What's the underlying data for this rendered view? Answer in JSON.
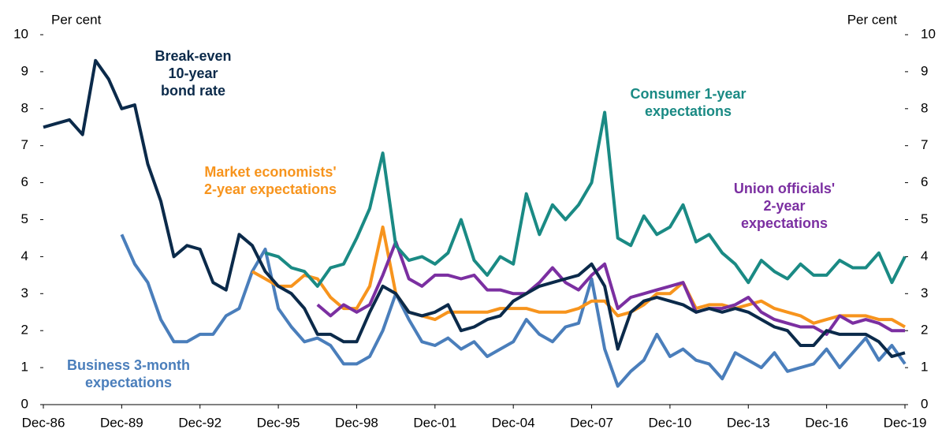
{
  "chart_data": {
    "type": "line",
    "y_label": "Per cent",
    "y2_label": "Per cent",
    "xlim": [
      1986.92,
      2019.92
    ],
    "xticks": [
      {
        "value": 1986.92,
        "label": "Dec-86"
      },
      {
        "value": 1989.92,
        "label": "Dec-89"
      },
      {
        "value": 1992.92,
        "label": "Dec-92"
      },
      {
        "value": 1995.92,
        "label": "Dec-95"
      },
      {
        "value": 1998.92,
        "label": "Dec-98"
      },
      {
        "value": 2001.92,
        "label": "Dec-01"
      },
      {
        "value": 2004.92,
        "label": "Dec-04"
      },
      {
        "value": 2007.92,
        "label": "Dec-07"
      },
      {
        "value": 2010.92,
        "label": "Dec-10"
      },
      {
        "value": 2013.92,
        "label": "Dec-13"
      },
      {
        "value": 2016.92,
        "label": "Dec-16"
      },
      {
        "value": 2019.92,
        "label": "Dec-19"
      }
    ],
    "ylim": [
      0,
      10
    ],
    "yticks": [
      0,
      1,
      2,
      3,
      4,
      5,
      6,
      7,
      8,
      9,
      10
    ],
    "y2lim": [
      0,
      10
    ],
    "y2ticks": [
      0,
      1,
      2,
      3,
      4,
      5,
      6,
      7,
      8,
      9,
      10
    ],
    "grid": false,
    "x": [
      1986.92,
      1987.42,
      1987.92,
      1988.42,
      1988.92,
      1989.42,
      1989.92,
      1990.42,
      1990.92,
      1991.42,
      1991.92,
      1992.42,
      1992.92,
      1993.42,
      1993.92,
      1994.42,
      1994.92,
      1995.42,
      1995.92,
      1996.42,
      1996.92,
      1997.42,
      1997.92,
      1998.42,
      1998.92,
      1999.42,
      1999.92,
      2000.42,
      2000.92,
      2001.42,
      2001.92,
      2002.42,
      2002.92,
      2003.42,
      2003.92,
      2004.42,
      2004.92,
      2005.42,
      2005.92,
      2006.42,
      2006.92,
      2007.42,
      2007.92,
      2008.42,
      2008.92,
      2009.42,
      2009.92,
      2010.42,
      2010.92,
      2011.42,
      2011.92,
      2012.42,
      2012.92,
      2013.42,
      2013.92,
      2014.42,
      2014.92,
      2015.42,
      2015.92,
      2016.42,
      2016.92,
      2017.42,
      2017.92,
      2018.42,
      2018.92,
      2019.42,
      2019.92
    ],
    "series": [
      {
        "name": "Business 3-month\nexpectations",
        "color": "#4a7ebb",
        "values": [
          null,
          null,
          null,
          null,
          null,
          null,
          4.6,
          3.8,
          3.3,
          2.3,
          1.7,
          1.7,
          1.9,
          1.9,
          2.4,
          2.6,
          3.6,
          4.2,
          2.6,
          2.1,
          1.7,
          1.8,
          1.6,
          1.1,
          1.1,
          1.3,
          2.0,
          3.0,
          2.3,
          1.7,
          1.6,
          1.8,
          1.5,
          1.7,
          1.3,
          1.5,
          1.7,
          2.3,
          1.9,
          1.7,
          2.1,
          2.2,
          3.4,
          1.5,
          0.5,
          0.9,
          1.2,
          1.9,
          1.3,
          1.5,
          1.2,
          1.1,
          0.7,
          1.4,
          1.2,
          1.0,
          1.4,
          0.9,
          1.0,
          1.1,
          1.5,
          1.0,
          1.4,
          1.8,
          1.2,
          1.6,
          1.1
        ]
      },
      {
        "name": "Market economists'\n2-year expectations",
        "color": "#f7941d",
        "values": [
          null,
          null,
          null,
          null,
          null,
          null,
          null,
          null,
          null,
          null,
          null,
          null,
          null,
          null,
          null,
          null,
          3.6,
          3.4,
          3.2,
          3.2,
          3.5,
          3.4,
          2.9,
          2.6,
          2.6,
          3.2,
          4.8,
          3.0,
          2.5,
          2.4,
          2.3,
          2.5,
          2.5,
          2.5,
          2.5,
          2.6,
          2.6,
          2.6,
          2.5,
          2.5,
          2.5,
          2.6,
          2.8,
          2.8,
          2.4,
          2.5,
          2.7,
          3.0,
          3.0,
          3.3,
          2.6,
          2.7,
          2.7,
          2.6,
          2.7,
          2.8,
          2.6,
          2.5,
          2.4,
          2.2,
          2.3,
          2.4,
          2.4,
          2.4,
          2.3,
          2.3,
          2.1
        ]
      },
      {
        "name": "Union officials'\n2-year\nexpectations",
        "color": "#7b2fa1",
        "values": [
          null,
          null,
          null,
          null,
          null,
          null,
          null,
          null,
          null,
          null,
          null,
          null,
          null,
          null,
          null,
          null,
          null,
          null,
          null,
          null,
          null,
          2.7,
          2.4,
          2.7,
          2.5,
          2.7,
          3.5,
          4.4,
          3.4,
          3.2,
          3.5,
          3.5,
          3.4,
          3.5,
          3.1,
          3.1,
          3.0,
          3.0,
          3.3,
          3.7,
          3.3,
          3.1,
          3.5,
          3.8,
          2.6,
          2.9,
          3.0,
          3.1,
          3.2,
          3.3,
          2.5,
          2.6,
          2.6,
          2.7,
          2.9,
          2.5,
          2.3,
          2.2,
          2.1,
          2.1,
          1.9,
          2.4,
          2.2,
          2.3,
          2.2,
          2.0,
          2.0
        ]
      },
      {
        "name": "Consumer 1-year\nexpectations",
        "color": "#1a8a84",
        "values": [
          null,
          null,
          null,
          null,
          null,
          null,
          null,
          null,
          null,
          null,
          null,
          null,
          null,
          null,
          null,
          null,
          null,
          4.1,
          4.0,
          3.7,
          3.6,
          3.2,
          3.7,
          3.8,
          4.5,
          5.3,
          6.8,
          4.3,
          3.9,
          4.0,
          3.8,
          4.1,
          5.0,
          3.9,
          3.5,
          4.0,
          3.8,
          5.7,
          4.6,
          5.4,
          5.0,
          5.4,
          6.0,
          7.9,
          4.5,
          4.3,
          5.1,
          4.6,
          4.8,
          5.4,
          4.4,
          4.6,
          4.1,
          3.8,
          3.3,
          3.9,
          3.6,
          3.4,
          3.8,
          3.5,
          3.5,
          3.9,
          3.7,
          3.7,
          4.1,
          3.3,
          4.0
        ]
      },
      {
        "name": "Break-even\n10-year\nbond rate",
        "color": "#0b2a4a",
        "values": [
          7.5,
          7.6,
          7.7,
          7.3,
          9.3,
          8.8,
          8.0,
          8.1,
          6.5,
          5.5,
          4.0,
          4.3,
          4.2,
          3.3,
          3.1,
          4.6,
          4.3,
          3.6,
          3.2,
          3.0,
          2.6,
          1.9,
          1.9,
          1.7,
          1.7,
          2.5,
          3.2,
          3.0,
          2.5,
          2.4,
          2.5,
          2.7,
          2.0,
          2.1,
          2.3,
          2.4,
          2.8,
          3.0,
          3.2,
          3.3,
          3.4,
          3.5,
          3.8,
          3.2,
          1.5,
          2.5,
          2.8,
          2.9,
          2.8,
          2.7,
          2.5,
          2.6,
          2.5,
          2.6,
          2.5,
          2.3,
          2.1,
          2.0,
          1.6,
          1.6,
          2.0,
          1.9,
          1.9,
          1.9,
          1.7,
          1.3,
          1.4
        ]
      }
    ]
  }
}
